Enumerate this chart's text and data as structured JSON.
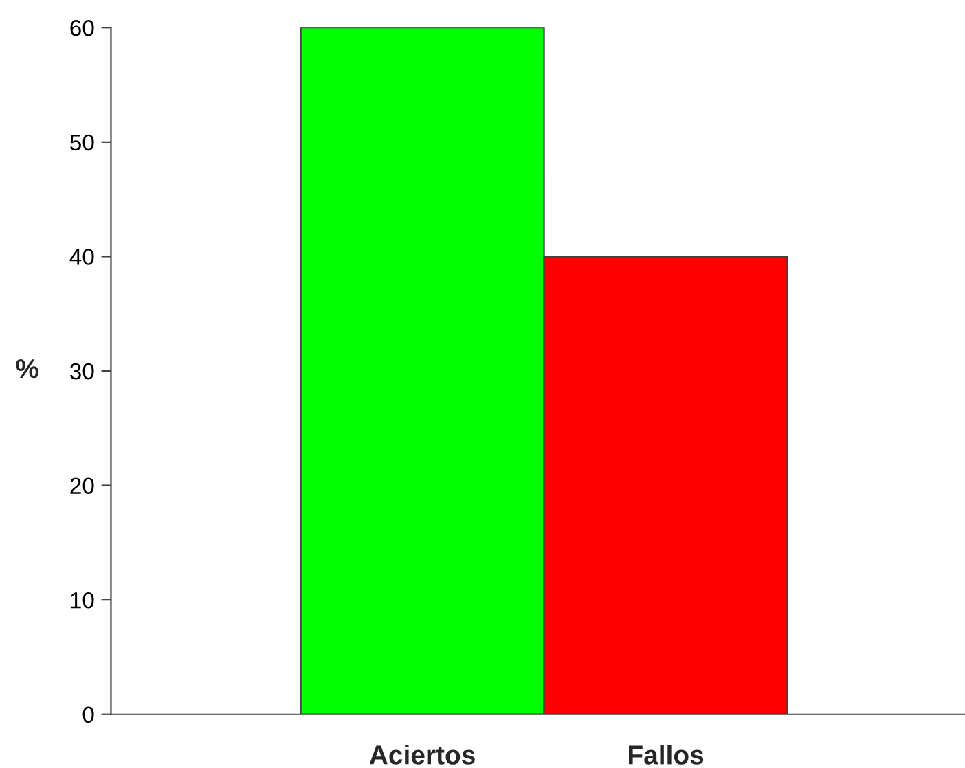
{
  "chart_data": {
    "type": "bar",
    "ylabel": "%",
    "categories": [
      "Aciertos",
      "Fallos"
    ],
    "values": [
      60,
      40
    ],
    "colors": [
      "#00ff00",
      "#ff0000"
    ],
    "ylim": [
      0,
      60
    ],
    "yticks": [
      0,
      10,
      20,
      30,
      40,
      50,
      60
    ],
    "grid": false,
    "legend": false
  }
}
